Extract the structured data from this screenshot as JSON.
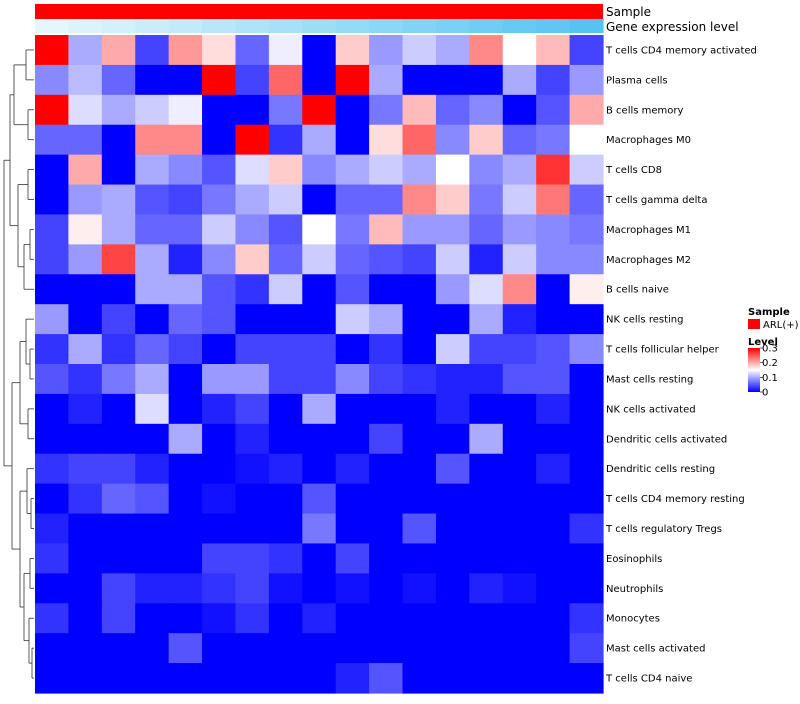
{
  "chart_data": {
    "type": "heatmap",
    "title": "",
    "annotation_tracks": [
      {
        "name": "Sample",
        "label": "Sample",
        "color": "#ff0000"
      },
      {
        "name": "Gene expression level",
        "label": "Gene expression level",
        "low_color": "#ffffff",
        "high_color": "#56c4f0"
      }
    ],
    "rows": [
      "T cells CD4 memory activated",
      "Plasma cells",
      "B cells memory",
      "Macrophages M0",
      "T cells CD8",
      "T cells gamma delta",
      "Macrophages M1",
      "Macrophages M2",
      "B cells naive",
      "NK cells resting",
      "T cells follicular helper",
      "Mast cells resting",
      "NK cells activated",
      "Dendritic cells activated",
      "Dendritic cells resting",
      "T cells CD4 memory resting",
      "T cells regulatory  Tregs",
      "Eosinophils",
      "Neutrophils",
      "Monocytes",
      "Mast cells activated",
      "T cells CD4 naive"
    ],
    "n_columns": 17,
    "values": [
      [
        0.3,
        0.1,
        0.2,
        0.04,
        0.21,
        0.17,
        0.06,
        0.14,
        0.0,
        0.18,
        0.09,
        0.12,
        0.1,
        0.22,
        0.15,
        0.19,
        0.04
      ],
      [
        0.08,
        0.11,
        0.06,
        0.0,
        0.0,
        0.3,
        0.04,
        0.24,
        0.0,
        0.3,
        0.1,
        0.0,
        0.0,
        0.0,
        0.1,
        0.04,
        0.09
      ],
      [
        0.3,
        0.13,
        0.1,
        0.12,
        0.14,
        0.0,
        0.0,
        0.07,
        0.3,
        0.0,
        0.07,
        0.19,
        0.06,
        0.08,
        0.0,
        0.05,
        0.2
      ],
      [
        0.06,
        0.06,
        0.0,
        0.22,
        0.22,
        0.0,
        0.3,
        0.03,
        0.1,
        0.0,
        0.17,
        0.24,
        0.08,
        0.18,
        0.06,
        0.07,
        0.15
      ],
      [
        0.0,
        0.2,
        0.0,
        0.1,
        0.08,
        0.05,
        0.13,
        0.18,
        0.08,
        0.1,
        0.12,
        0.1,
        0.15,
        0.08,
        0.1,
        0.27,
        0.12
      ],
      [
        0.0,
        0.09,
        0.1,
        0.05,
        0.04,
        0.07,
        0.1,
        0.12,
        0.0,
        0.06,
        0.06,
        0.22,
        0.18,
        0.07,
        0.12,
        0.23,
        0.06
      ],
      [
        0.04,
        0.16,
        0.1,
        0.06,
        0.06,
        0.12,
        0.08,
        0.05,
        0.15,
        0.07,
        0.19,
        0.09,
        0.09,
        0.06,
        0.09,
        0.08,
        0.07
      ],
      [
        0.04,
        0.09,
        0.26,
        0.1,
        0.02,
        0.08,
        0.18,
        0.06,
        0.12,
        0.06,
        0.05,
        0.04,
        0.12,
        0.02,
        0.12,
        0.08,
        0.08
      ],
      [
        0.0,
        0.0,
        0.0,
        0.1,
        0.1,
        0.05,
        0.03,
        0.12,
        0.0,
        0.05,
        0.0,
        0.0,
        0.09,
        0.13,
        0.22,
        0.0,
        0.16
      ],
      [
        0.09,
        0.0,
        0.04,
        0.0,
        0.06,
        0.05,
        0.0,
        0.0,
        0.0,
        0.12,
        0.1,
        0.0,
        0.0,
        0.1,
        0.02,
        0.0,
        0.0
      ],
      [
        0.03,
        0.1,
        0.03,
        0.06,
        0.04,
        0.0,
        0.04,
        0.04,
        0.04,
        0.0,
        0.03,
        0.0,
        0.12,
        0.04,
        0.04,
        0.05,
        0.08
      ],
      [
        0.05,
        0.03,
        0.07,
        0.1,
        0.0,
        0.09,
        0.09,
        0.04,
        0.04,
        0.08,
        0.04,
        0.03,
        0.02,
        0.02,
        0.05,
        0.05,
        0.0
      ],
      [
        0.0,
        0.02,
        0.0,
        0.13,
        0.0,
        0.02,
        0.04,
        0.0,
        0.1,
        0.0,
        0.0,
        0.0,
        0.02,
        0.0,
        0.0,
        0.02,
        0.0
      ],
      [
        0.0,
        0.0,
        0.0,
        0.0,
        0.1,
        0.0,
        0.02,
        0.0,
        0.0,
        0.0,
        0.04,
        0.0,
        0.0,
        0.1,
        0.0,
        0.0,
        0.0
      ],
      [
        0.03,
        0.04,
        0.04,
        0.02,
        0.0,
        0.0,
        0.01,
        0.02,
        0.0,
        0.02,
        0.0,
        0.0,
        0.05,
        0.0,
        0.0,
        0.02,
        0.0
      ],
      [
        0.0,
        0.03,
        0.06,
        0.05,
        0.0,
        0.01,
        0.0,
        0.0,
        0.05,
        0.0,
        0.0,
        0.0,
        0.0,
        0.0,
        0.0,
        0.0,
        0.0
      ],
      [
        0.02,
        0.0,
        0.0,
        0.0,
        0.0,
        0.0,
        0.0,
        0.0,
        0.07,
        0.0,
        0.0,
        0.05,
        0.0,
        0.0,
        0.0,
        0.0,
        0.03
      ],
      [
        0.03,
        0.0,
        0.0,
        0.0,
        0.0,
        0.04,
        0.04,
        0.03,
        0.0,
        0.04,
        0.0,
        0.0,
        0.0,
        0.0,
        0.0,
        0.0,
        0.0
      ],
      [
        0.0,
        0.0,
        0.04,
        0.02,
        0.02,
        0.03,
        0.04,
        0.01,
        0.0,
        0.01,
        0.0,
        0.01,
        0.0,
        0.02,
        0.01,
        0.0,
        0.0
      ],
      [
        0.03,
        0.0,
        0.04,
        0.0,
        0.0,
        0.01,
        0.03,
        0.0,
        0.02,
        0.0,
        0.0,
        0.0,
        0.0,
        0.0,
        0.0,
        0.0,
        0.03
      ],
      [
        0.0,
        0.0,
        0.0,
        0.0,
        0.05,
        0.0,
        0.0,
        0.0,
        0.0,
        0.0,
        0.0,
        0.0,
        0.0,
        0.0,
        0.0,
        0.0,
        0.04
      ],
      [
        0.0,
        0.0,
        0.0,
        0.0,
        0.0,
        0.0,
        0.0,
        0.0,
        0.0,
        0.02,
        0.05,
        0.0,
        0.0,
        0.0,
        0.0,
        0.0,
        0.0
      ]
    ],
    "color_scale": {
      "min": 0,
      "max": 0.3,
      "low": "#0000ff",
      "mid": "#ffffff",
      "mid_value": 0.15,
      "high": "#ff0000",
      "ticks": [
        "0.3",
        "0.2",
        "0.1",
        "0"
      ],
      "tick_values": [
        0.3,
        0.2,
        0.1,
        0
      ]
    },
    "legend": {
      "sample_title": "Sample",
      "sample_entry": "ARL(+)",
      "sample_color": "#ff0000",
      "level_title": "Level"
    },
    "dendrogram": "rows"
  }
}
